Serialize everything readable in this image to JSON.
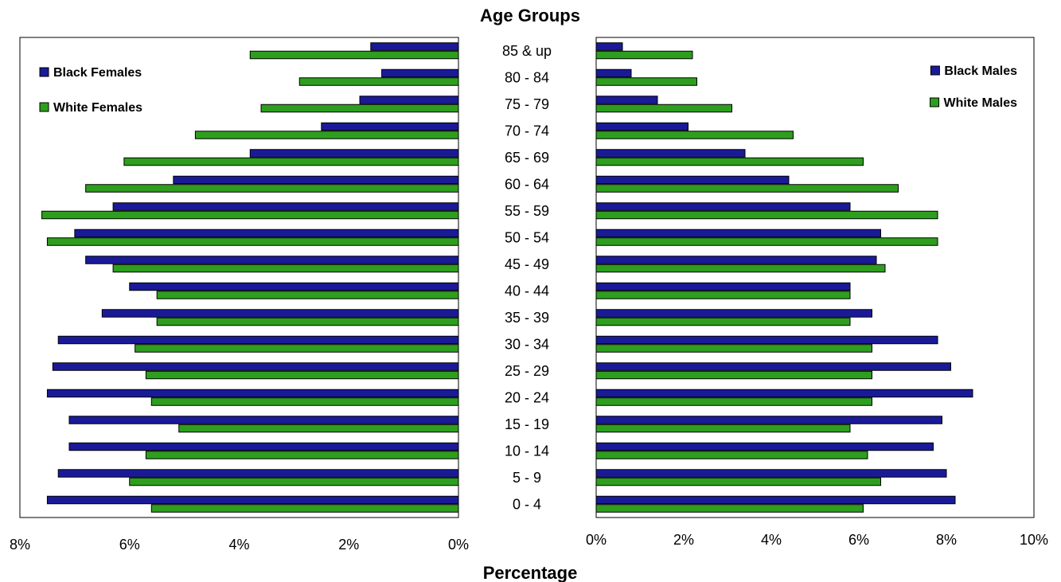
{
  "chart_data": {
    "type": "bar",
    "orientation": "horizontal",
    "title": "Age Groups",
    "xlabel": "Percentage",
    "colors": {
      "black": "#1a1a99",
      "white": "#2e9e1e"
    },
    "categories": [
      "85 & up",
      "80 - 84",
      "75 - 79",
      "70 - 74",
      "65 - 69",
      "60 - 64",
      "55 - 59",
      "50 - 54",
      "45 - 49",
      "40 - 44",
      "35 - 39",
      "30 - 34",
      "25 - 29",
      "20 - 24",
      "15 - 19",
      "10 - 14",
      "5 -  9",
      "0 -  4"
    ],
    "panels": [
      {
        "side": "left",
        "xlim": [
          8,
          0
        ],
        "ticks": [
          "8%",
          "6%",
          "4%",
          "2%",
          "0%"
        ],
        "legend_position": "top-left",
        "series": [
          {
            "name": "Black Females",
            "color_key": "black",
            "values": [
              1.6,
              1.4,
              1.8,
              2.5,
              3.8,
              5.2,
              6.3,
              7.0,
              6.8,
              6.0,
              6.5,
              7.3,
              7.4,
              7.5,
              7.1,
              7.1,
              7.3,
              7.5
            ]
          },
          {
            "name": "White Females",
            "color_key": "white",
            "values": [
              3.8,
              2.9,
              3.6,
              4.8,
              6.1,
              6.8,
              7.6,
              7.5,
              6.3,
              5.5,
              5.5,
              5.9,
              5.7,
              5.6,
              5.1,
              5.7,
              6.0,
              5.6
            ]
          }
        ]
      },
      {
        "side": "right",
        "xlim": [
          0,
          10
        ],
        "ticks": [
          "0%",
          "2%",
          "4%",
          "6%",
          "8%",
          "10%"
        ],
        "legend_position": "top-right",
        "series": [
          {
            "name": "Black Males",
            "color_key": "black",
            "values": [
              0.6,
              0.8,
              1.4,
              2.1,
              3.4,
              4.4,
              5.8,
              6.5,
              6.4,
              5.8,
              6.3,
              7.8,
              8.1,
              8.6,
              7.9,
              7.7,
              8.0,
              8.2
            ]
          },
          {
            "name": "White Males",
            "color_key": "white",
            "values": [
              2.2,
              2.3,
              3.1,
              4.5,
              6.1,
              6.9,
              7.8,
              7.8,
              6.6,
              5.8,
              5.8,
              6.3,
              6.3,
              6.3,
              5.8,
              6.2,
              6.5,
              6.1
            ]
          }
        ]
      }
    ]
  }
}
